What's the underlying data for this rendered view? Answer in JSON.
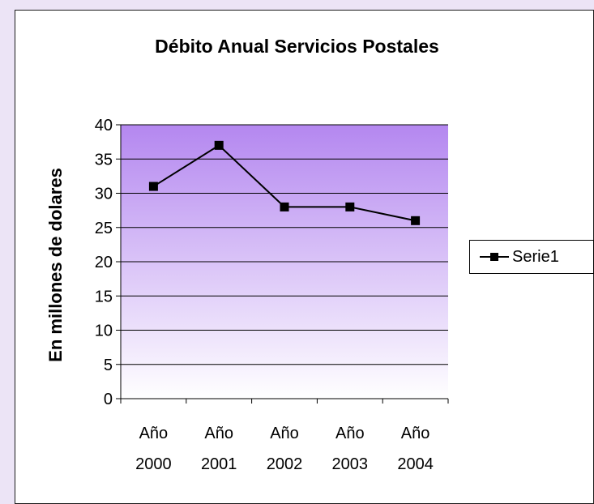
{
  "chart_data": {
    "type": "line",
    "title": "Débito Anual Servicios Postales",
    "xlabel": "",
    "ylabel": "En millones de dolares",
    "categories": [
      [
        "Año",
        "2000"
      ],
      [
        "Año",
        "2001"
      ],
      [
        "Año",
        "2002"
      ],
      [
        "Año",
        "2003"
      ],
      [
        "Año",
        "2004"
      ]
    ],
    "series": [
      {
        "name": "Serie1",
        "values": [
          31,
          37,
          28,
          28,
          26
        ],
        "color": "#000000",
        "marker": "square"
      }
    ],
    "ylim": [
      0,
      40
    ],
    "yticks": [
      "0",
      "5",
      "10",
      "15",
      "20",
      "25",
      "30",
      "35",
      "40"
    ],
    "grid": true,
    "legend": "right",
    "plot_fill_top": "#b487f0",
    "plot_fill_bottom": "#ffffff"
  }
}
